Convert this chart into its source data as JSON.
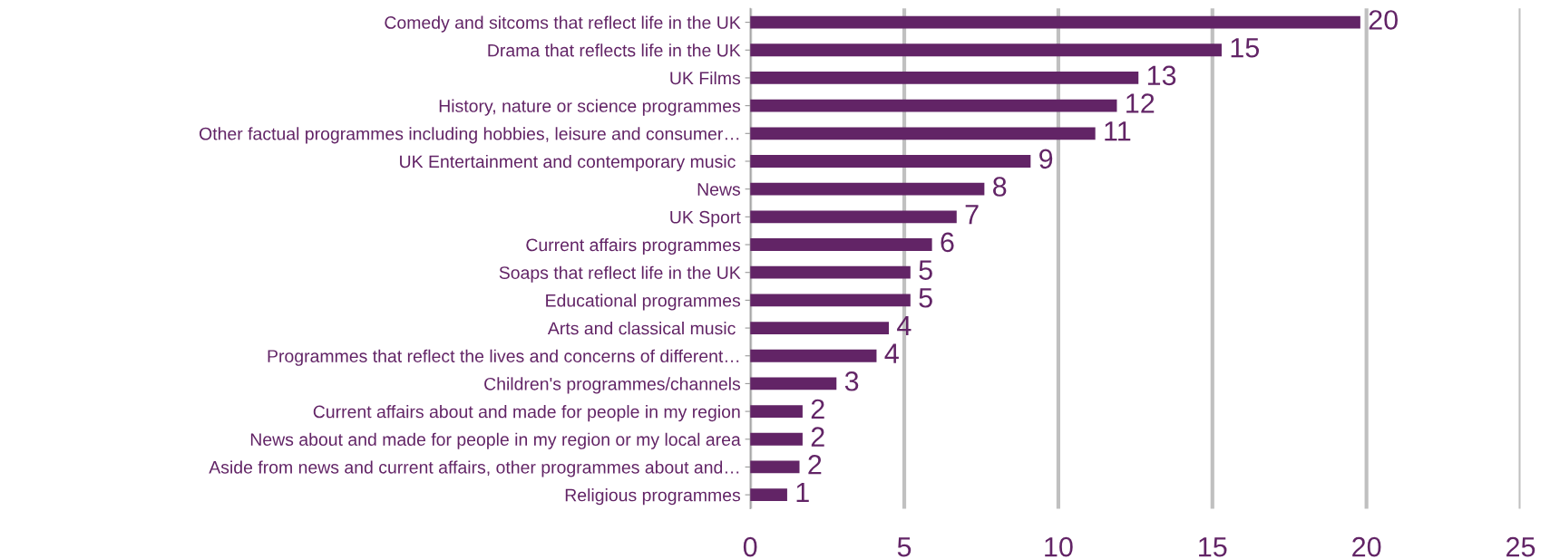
{
  "chart_data": {
    "type": "bar",
    "orientation": "horizontal",
    "categories": [
      "Comedy and sitcoms that reflect life in the UK",
      "Drama that reflects life in the UK",
      "UK Films",
      "History, nature or science programmes",
      "Other factual programmes including hobbies, leisure and consumer…",
      "UK Entertainment and contemporary music ",
      "News",
      "UK Sport",
      "Current affairs programmes",
      "Soaps that reflect life in the UK",
      "Educational programmes",
      "Arts and classical music ",
      "Programmes that reflect the lives and concerns of different…",
      "Children's programmes/channels",
      "Current affairs about and made for people in my region",
      "News about and made for people in my region or my local area",
      "Aside from news and current affairs, other programmes about and…",
      "Religious programmes"
    ],
    "values": [
      19.8,
      15.3,
      12.6,
      11.9,
      11.2,
      9.1,
      7.6,
      6.7,
      5.9,
      5.2,
      5.2,
      4.5,
      4.1,
      2.8,
      1.7,
      1.7,
      1.6,
      1.2
    ],
    "value_labels": [
      "20",
      "15",
      "13",
      "12",
      "11",
      "9",
      "8",
      "7",
      "6",
      "5",
      "5",
      "4",
      "4",
      "3",
      "2",
      "2",
      "2",
      "1"
    ],
    "color": "#622466",
    "xlim": [
      0,
      25
    ],
    "xticks": [
      0,
      5,
      10,
      15,
      20,
      25
    ],
    "grid": "x",
    "legend": false
  }
}
